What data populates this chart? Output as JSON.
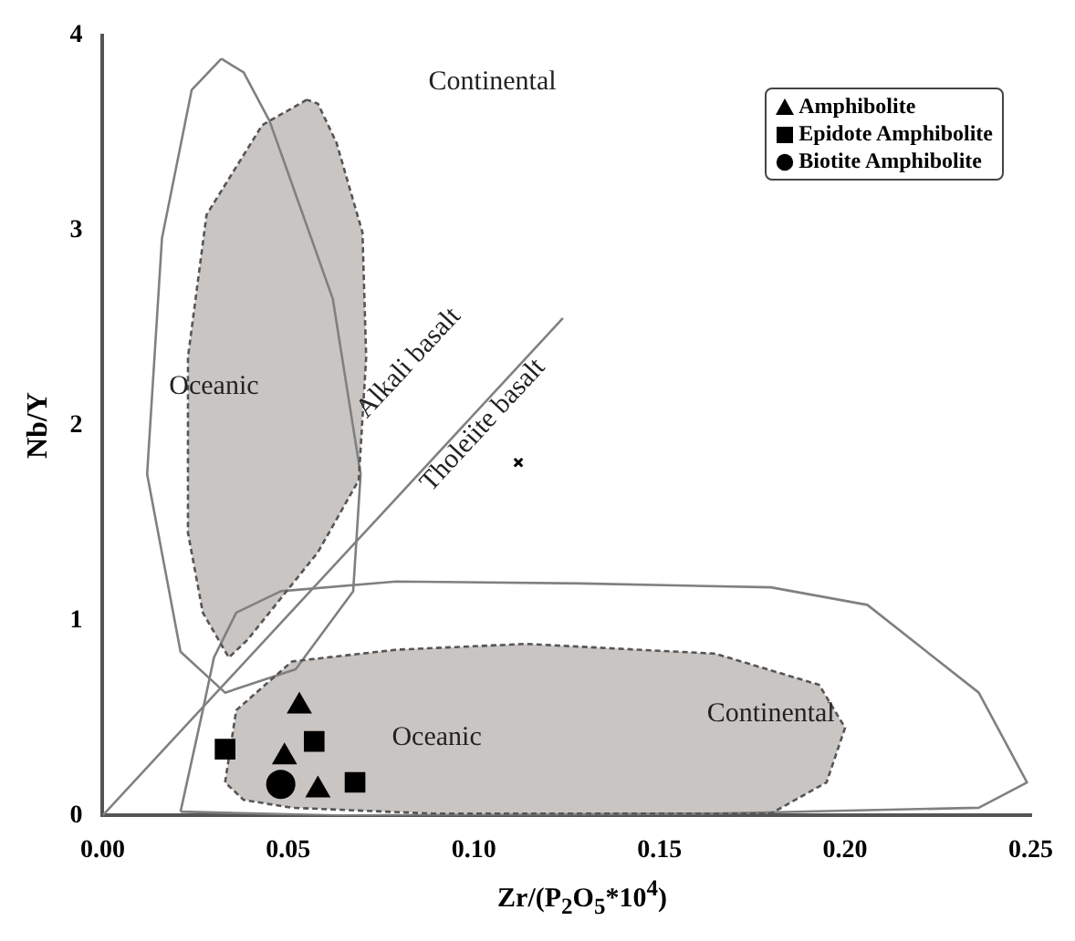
{
  "chart_data": {
    "type": "scatter",
    "xlabel": "Zr/(P$_{2}$O$_{5}$*10$^{4}$)",
    "ylabel": "Nb/Y",
    "xlim": [
      0,
      0.25
    ],
    "xticks": [
      {
        "value": 0,
        "label": "0.00"
      },
      {
        "value": 0.05,
        "label": "0.05"
      },
      {
        "value": 0.1,
        "label": "0.10"
      },
      {
        "value": 0.15,
        "label": "0.15"
      },
      {
        "value": 0.2,
        "label": "0.20"
      },
      {
        "value": 0.25,
        "label": "0.25"
      }
    ],
    "ylim": [
      0,
      4
    ],
    "yticks": [
      0,
      1,
      2,
      3,
      4
    ],
    "grid": false,
    "legend": "top right",
    "series": [
      {
        "name": "Amphibolite",
        "type": "scatter",
        "marker": "triangle",
        "color": "#000000",
        "x": [
          0.053,
          0.049,
          0.058
        ],
        "values": [
          0.56,
          0.3,
          0.13
        ]
      },
      {
        "name": "Epidote Amphibolite",
        "type": "scatter",
        "marker": "square",
        "color": "#000000",
        "x": [
          0.033,
          0.057,
          0.068
        ],
        "values": [
          0.34,
          0.38,
          0.17
        ]
      },
      {
        "name": "Biotite Amphibolite",
        "type": "scatter",
        "marker": "circle",
        "color": "#000000",
        "x": [
          0.048
        ],
        "values": [
          0.16
        ]
      },
      {
        "type": "scatter",
        "marker": "cross",
        "color": "#000000",
        "x": [
          0.112
        ],
        "values": [
          1.81
        ]
      },
      {
        "type": "line",
        "color": "#808080",
        "line_style": "solid",
        "x": [
          0,
          0.124
        ],
        "values": [
          0,
          2.55
        ]
      },
      {
        "type": "area",
        "color": "#c9c5c3",
        "line_style": "dashed",
        "x": [
          0.055,
          0.043,
          0.028,
          0.023,
          0.023,
          0.027,
          0.034,
          0.039,
          0.058,
          0.069,
          0.071,
          0.07,
          0.063,
          0.058,
          0.055
        ],
        "values": [
          3.67,
          3.54,
          3.08,
          2.35,
          1.45,
          1.04,
          0.81,
          0.9,
          1.35,
          1.72,
          2.35,
          2.99,
          3.45,
          3.65,
          3.67
        ]
      },
      {
        "type": "area",
        "color": "#c9c5c3",
        "line_style": "dashed",
        "x": [
          0.033,
          0.036,
          0.051,
          0.079,
          0.114,
          0.165,
          0.193,
          0.2,
          0.195,
          0.18,
          0.089,
          0.051,
          0.038,
          0.033
        ],
        "values": [
          0.17,
          0.54,
          0.79,
          0.85,
          0.88,
          0.83,
          0.67,
          0.45,
          0.17,
          0.01,
          0.01,
          0.04,
          0.08,
          0.17
        ]
      },
      {
        "type": "area",
        "color": "#ffffff",
        "line_style": "solid",
        "x": [
          0.032,
          0.038,
          0.045,
          0.062,
          0.0695,
          0.0675,
          0.052,
          0.033,
          0.021,
          0.012,
          0.016,
          0.024,
          0.032
        ],
        "values": [
          3.88,
          3.81,
          3.56,
          2.65,
          1.75,
          1.15,
          0.75,
          0.63,
          0.84,
          1.75,
          2.96,
          3.72,
          3.88
        ]
      },
      {
        "type": "area",
        "color": "#ffffff",
        "line_style": "solid",
        "x": [
          0.021,
          0.027,
          0.03,
          0.036,
          0.048,
          0.079,
          0.129,
          0.18,
          0.206,
          0.236,
          0.249,
          0.236,
          0.165,
          0.063,
          0.021
        ],
        "values": [
          0.02,
          0.54,
          0.81,
          1.04,
          1.15,
          1.2,
          1.19,
          1.17,
          1.08,
          0.63,
          0.17,
          0.04,
          0.01,
          0,
          0.02
        ]
      }
    ],
    "annotations": [
      "Continental",
      "Oceanic",
      "Oceanic",
      "Continental",
      "Alkali basalt",
      "Tholeiite basalt"
    ]
  }
}
